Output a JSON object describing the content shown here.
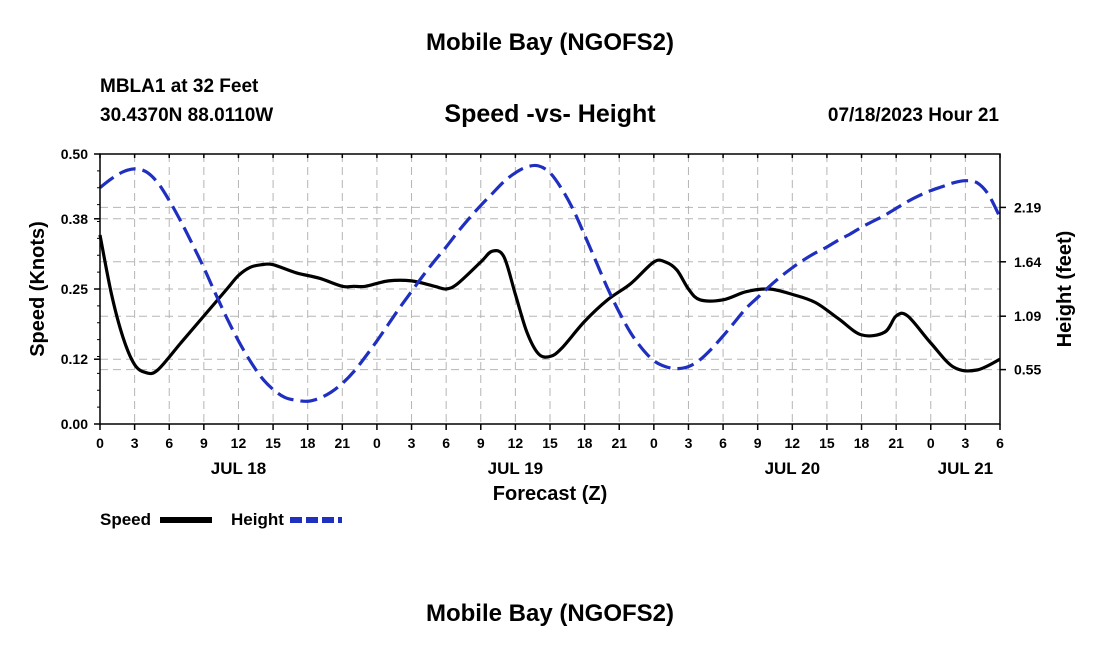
{
  "header": {
    "title": "Mobile Bay (NGOFS2)",
    "station": "MBLA1 at 32 Feet",
    "coords": "30.4370N   88.0110W",
    "subtitle": "Speed -vs- Height",
    "datetime": "07/18/2023 Hour 21"
  },
  "footer": {
    "title": "Mobile Bay (NGOFS2)"
  },
  "chart_data": {
    "type": "line",
    "title": "Speed -vs- Height",
    "xlabel": "Forecast (Z)",
    "ylabel": "Speed (Knots)",
    "y2label": "Height (feet)",
    "x_unit": "hours from 2023-07-18 00Z",
    "xlim": [
      0,
      78
    ],
    "ylim": [
      0,
      0.5
    ],
    "y2lim": [
      0,
      2.73
    ],
    "y_ticks": [
      0.0,
      0.12,
      0.25,
      0.38,
      0.5
    ],
    "y_tick_labels": [
      "0.00",
      "0.12",
      "0.25",
      "0.38",
      "0.50"
    ],
    "y2_ticks": [
      0.55,
      1.09,
      1.64,
      2.19
    ],
    "y2_tick_labels": [
      "0.55",
      "1.09",
      "1.64",
      "2.19"
    ],
    "x_ticks": [
      0,
      3,
      6,
      9,
      12,
      15,
      18,
      21,
      24,
      27,
      30,
      33,
      36,
      39,
      42,
      45,
      48,
      51,
      54,
      57,
      60,
      63,
      66,
      69,
      72,
      75,
      78
    ],
    "x_tick_labels": [
      "0",
      "3",
      "6",
      "9",
      "12",
      "15",
      "18",
      "21",
      "0",
      "3",
      "6",
      "9",
      "12",
      "15",
      "18",
      "21",
      "0",
      "3",
      "6",
      "9",
      "12",
      "15",
      "18",
      "21",
      "0",
      "3",
      "6"
    ],
    "day_labels": [
      {
        "x": 12,
        "label": "JUL 18"
      },
      {
        "x": 36,
        "label": "JUL 19"
      },
      {
        "x": 60,
        "label": "JUL 20"
      },
      {
        "x": 75,
        "label": "JUL 21"
      }
    ],
    "grid": true,
    "series": [
      {
        "name": "Speed",
        "axis": "left",
        "color": "#000000",
        "dash": "solid",
        "x": [
          0,
          1,
          2,
          3,
          4,
          5,
          7,
          9,
          11,
          12,
          13,
          14,
          15,
          17,
          19,
          21,
          22,
          23,
          25,
          27,
          29,
          30,
          31,
          33,
          34,
          35,
          36,
          37,
          38,
          39,
          40,
          42,
          44,
          46,
          48,
          49,
          50,
          51,
          52,
          54,
          56,
          58,
          60,
          62,
          64,
          66,
          68,
          69,
          70,
          72,
          74,
          76,
          78
        ],
        "values": [
          0.35,
          0.24,
          0.16,
          0.11,
          0.095,
          0.1,
          0.15,
          0.2,
          0.25,
          0.275,
          0.29,
          0.295,
          0.295,
          0.28,
          0.27,
          0.255,
          0.255,
          0.255,
          0.265,
          0.265,
          0.255,
          0.25,
          0.26,
          0.3,
          0.32,
          0.31,
          0.24,
          0.17,
          0.13,
          0.125,
          0.14,
          0.19,
          0.23,
          0.26,
          0.3,
          0.3,
          0.285,
          0.25,
          0.23,
          0.23,
          0.245,
          0.25,
          0.24,
          0.225,
          0.195,
          0.165,
          0.17,
          0.2,
          0.2,
          0.15,
          0.105,
          0.1,
          0.12
        ]
      },
      {
        "name": "Height",
        "axis": "right",
        "color": "#1f2fbf",
        "dash": "dashed",
        "x": [
          0,
          1,
          2,
          3,
          4,
          5,
          6,
          7,
          8,
          9,
          10,
          11,
          12,
          13,
          14,
          15,
          16,
          17,
          18,
          19,
          20,
          21,
          22,
          23,
          24,
          25,
          26,
          27,
          28,
          29,
          30,
          31,
          32,
          33,
          34,
          35,
          36,
          37,
          38,
          39,
          40,
          41,
          42,
          43,
          44,
          45,
          46,
          47,
          48,
          49,
          50,
          51,
          52,
          53,
          54,
          55,
          56,
          57,
          58,
          59,
          60,
          61,
          62,
          63,
          64,
          65,
          66,
          67,
          68,
          69,
          70,
          71,
          72,
          73,
          74,
          75,
          76,
          77,
          78
        ],
        "values": [
          2.39,
          2.48,
          2.55,
          2.58,
          2.55,
          2.44,
          2.26,
          2.05,
          1.82,
          1.58,
          1.32,
          1.07,
          0.84,
          0.64,
          0.47,
          0.35,
          0.27,
          0.24,
          0.23,
          0.26,
          0.32,
          0.41,
          0.53,
          0.68,
          0.84,
          1.01,
          1.18,
          1.34,
          1.5,
          1.65,
          1.79,
          1.94,
          2.08,
          2.21,
          2.33,
          2.45,
          2.54,
          2.6,
          2.61,
          2.54,
          2.38,
          2.17,
          1.91,
          1.64,
          1.37,
          1.13,
          0.92,
          0.76,
          0.64,
          0.58,
          0.56,
          0.58,
          0.65,
          0.76,
          0.89,
          1.03,
          1.17,
          1.28,
          1.39,
          1.49,
          1.58,
          1.66,
          1.73,
          1.79,
          1.86,
          1.92,
          1.99,
          2.05,
          2.11,
          2.18,
          2.25,
          2.31,
          2.36,
          2.4,
          2.44,
          2.46,
          2.44,
          2.32,
          2.09
        ]
      }
    ]
  }
}
